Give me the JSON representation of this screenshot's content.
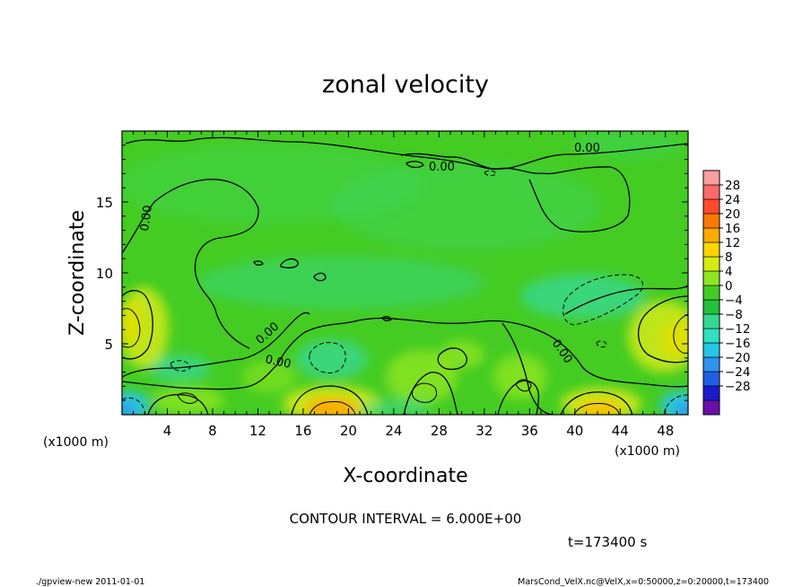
{
  "chart_data": {
    "type": "heatmap",
    "title": "zonal velocity",
    "xlabel": "X-coordinate",
    "ylabel": "Z-coordinate",
    "x_unit": "(x1000 m)",
    "y_unit": "(x1000 m)",
    "xlim": [
      0,
      50
    ],
    "ylim": [
      0,
      20
    ],
    "x_ticks": [
      4,
      8,
      12,
      16,
      20,
      24,
      28,
      32,
      36,
      40,
      44,
      48
    ],
    "y_ticks": [
      5,
      10,
      15
    ],
    "colorbar": {
      "levels": [
        -32,
        -28,
        -24,
        -20,
        -16,
        -12,
        -8,
        -4,
        0,
        4,
        8,
        12,
        16,
        20,
        24,
        28,
        32
      ],
      "tick_labels": [
        "28",
        "24",
        "20",
        "16",
        "12",
        "8",
        "4",
        "0",
        "−4",
        "−8",
        "−12",
        "−16",
        "−20",
        "−24",
        "−28"
      ],
      "colors": [
        "#6a0dad",
        "#1a1acc",
        "#1f5fe6",
        "#2f93f2",
        "#27c6e6",
        "#30e0c0",
        "#38d890",
        "#22c23c",
        "#44cc22",
        "#8ee620",
        "#d4ea14",
        "#ffd400",
        "#ffaa00",
        "#ff7800",
        "#ff4b2b",
        "#ff6a6a",
        "#ff9e9e"
      ]
    },
    "contour_labels": [
      "0.00",
      "0.00",
      "0.00",
      "0.00",
      "0.00",
      "0.00"
    ],
    "field_features": [
      {
        "x": 18.5,
        "z": 0.4,
        "value": 18
      },
      {
        "x": 41.5,
        "z": 0.3,
        "value": 15
      },
      {
        "x": 1.0,
        "z": 0.5,
        "value": -13
      },
      {
        "x": 49.5,
        "z": 0.3,
        "value": -14
      },
      {
        "x": 1.3,
        "z": 6.5,
        "value": 9
      },
      {
        "x": 48.0,
        "z": 5.8,
        "value": 9
      },
      {
        "x": 39.5,
        "z": 7.5,
        "value": -6
      },
      {
        "x": 18.5,
        "z": 4.2,
        "value": -5
      },
      {
        "x": 5.0,
        "z": 3.3,
        "value": -5
      }
    ]
  },
  "contour_interval": "CONTOUR INTERVAL = 6.000E+00",
  "time_label": "t=173400 s",
  "footer_left": "./gpview-new  2011-01-01",
  "footer_right": "MarsCond_VelX.nc@VelX,x=0:50000,z=0:20000,t=173400"
}
